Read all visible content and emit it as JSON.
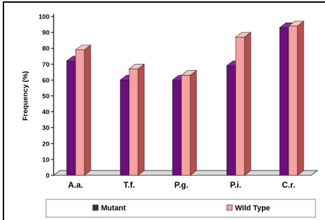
{
  "chart_data": {
    "type": "bar",
    "style": "3d-clustered-column",
    "title": "",
    "xlabel": "",
    "ylabel": "Frequency (%)",
    "ylim": [
      0,
      100
    ],
    "yticks": [
      "0",
      "10",
      "20",
      "30",
      "40",
      "50",
      "60",
      "70",
      "80",
      "90",
      "100"
    ],
    "grid": false,
    "legend_position": "bottom",
    "categories": [
      "A.a.",
      "T.f.",
      "P.g.",
      "P.i.",
      "C.r."
    ],
    "series": [
      {
        "name": "Mutant",
        "values": [
          72,
          60,
          60,
          69,
          93
        ],
        "color": "#6b0f7a",
        "side_color": "#3f0748",
        "top_color": "#8a2a98"
      },
      {
        "name": "Wild Type",
        "values": [
          79,
          67,
          63,
          87,
          94
        ],
        "color": "#f6a0a0",
        "side_color": "#b5504e",
        "top_color": "#f8c2c0"
      }
    ],
    "floor_color": "#d9d9d9"
  }
}
